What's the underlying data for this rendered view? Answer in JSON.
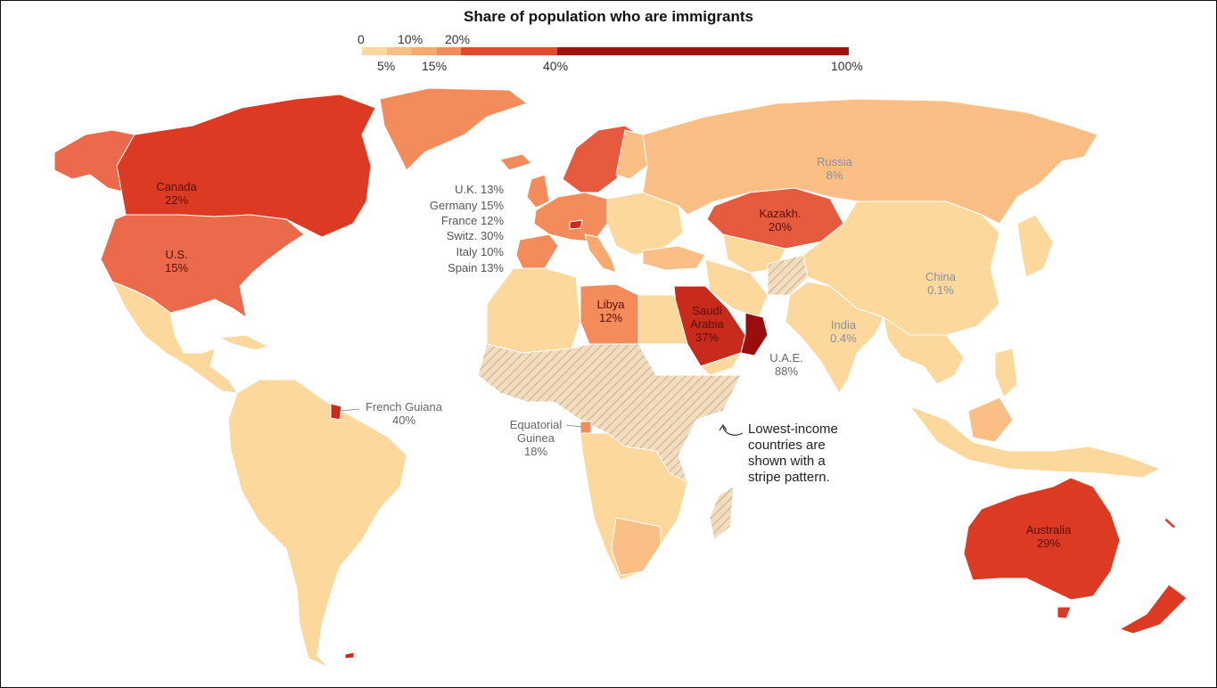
{
  "title": "Share of population who are immigrants",
  "legend": {
    "upper_ticks": [
      "0",
      "10%",
      "20%"
    ],
    "lower_ticks": [
      "5%",
      "15%",
      "40%",
      "100%"
    ],
    "bins": [
      {
        "from": "0",
        "to": "5%",
        "color": "#fcd89c"
      },
      {
        "from": "5%",
        "to": "10%",
        "color": "#fbbf85"
      },
      {
        "from": "10%",
        "to": "15%",
        "color": "#f9a96d"
      },
      {
        "from": "15%",
        "to": "20%",
        "color": "#f48b5a"
      },
      {
        "from": "20%",
        "to": "40%",
        "color": "#e24a2d"
      },
      {
        "from": "40%",
        "to": "100%",
        "color": "#a31010"
      }
    ]
  },
  "countries": {
    "canada": {
      "name": "Canada",
      "value": "22%"
    },
    "us": {
      "name": "U.S.",
      "value": "15%"
    },
    "russia": {
      "name": "Russia",
      "value": "8%"
    },
    "kazakhstan": {
      "name": "Kazakh.",
      "value": "20%"
    },
    "china": {
      "name": "China",
      "value": "0.1%"
    },
    "india": {
      "name": "India",
      "value": "0.4%"
    },
    "libya": {
      "name": "Libya",
      "value": "12%"
    },
    "saudi": {
      "name1": "Saudi",
      "name2": "Arabia",
      "value": "37%"
    },
    "uae": {
      "name": "U.A.E.",
      "value": "88%"
    },
    "french_guiana": {
      "name": "French Guiana",
      "value": "40%"
    },
    "eq_guinea": {
      "name1": "Equatorial",
      "name2": "Guinea",
      "value": "18%"
    },
    "australia": {
      "name": "Australia",
      "value": "29%"
    }
  },
  "europe_labels": [
    "U.K. 13%",
    "Germany 15%",
    "France 12%",
    "Switz. 30%",
    "Italy 10%",
    "Spain 13%"
  ],
  "note": [
    "Lowest-income",
    "countries are",
    "shown with a",
    "stripe pattern."
  ]
}
